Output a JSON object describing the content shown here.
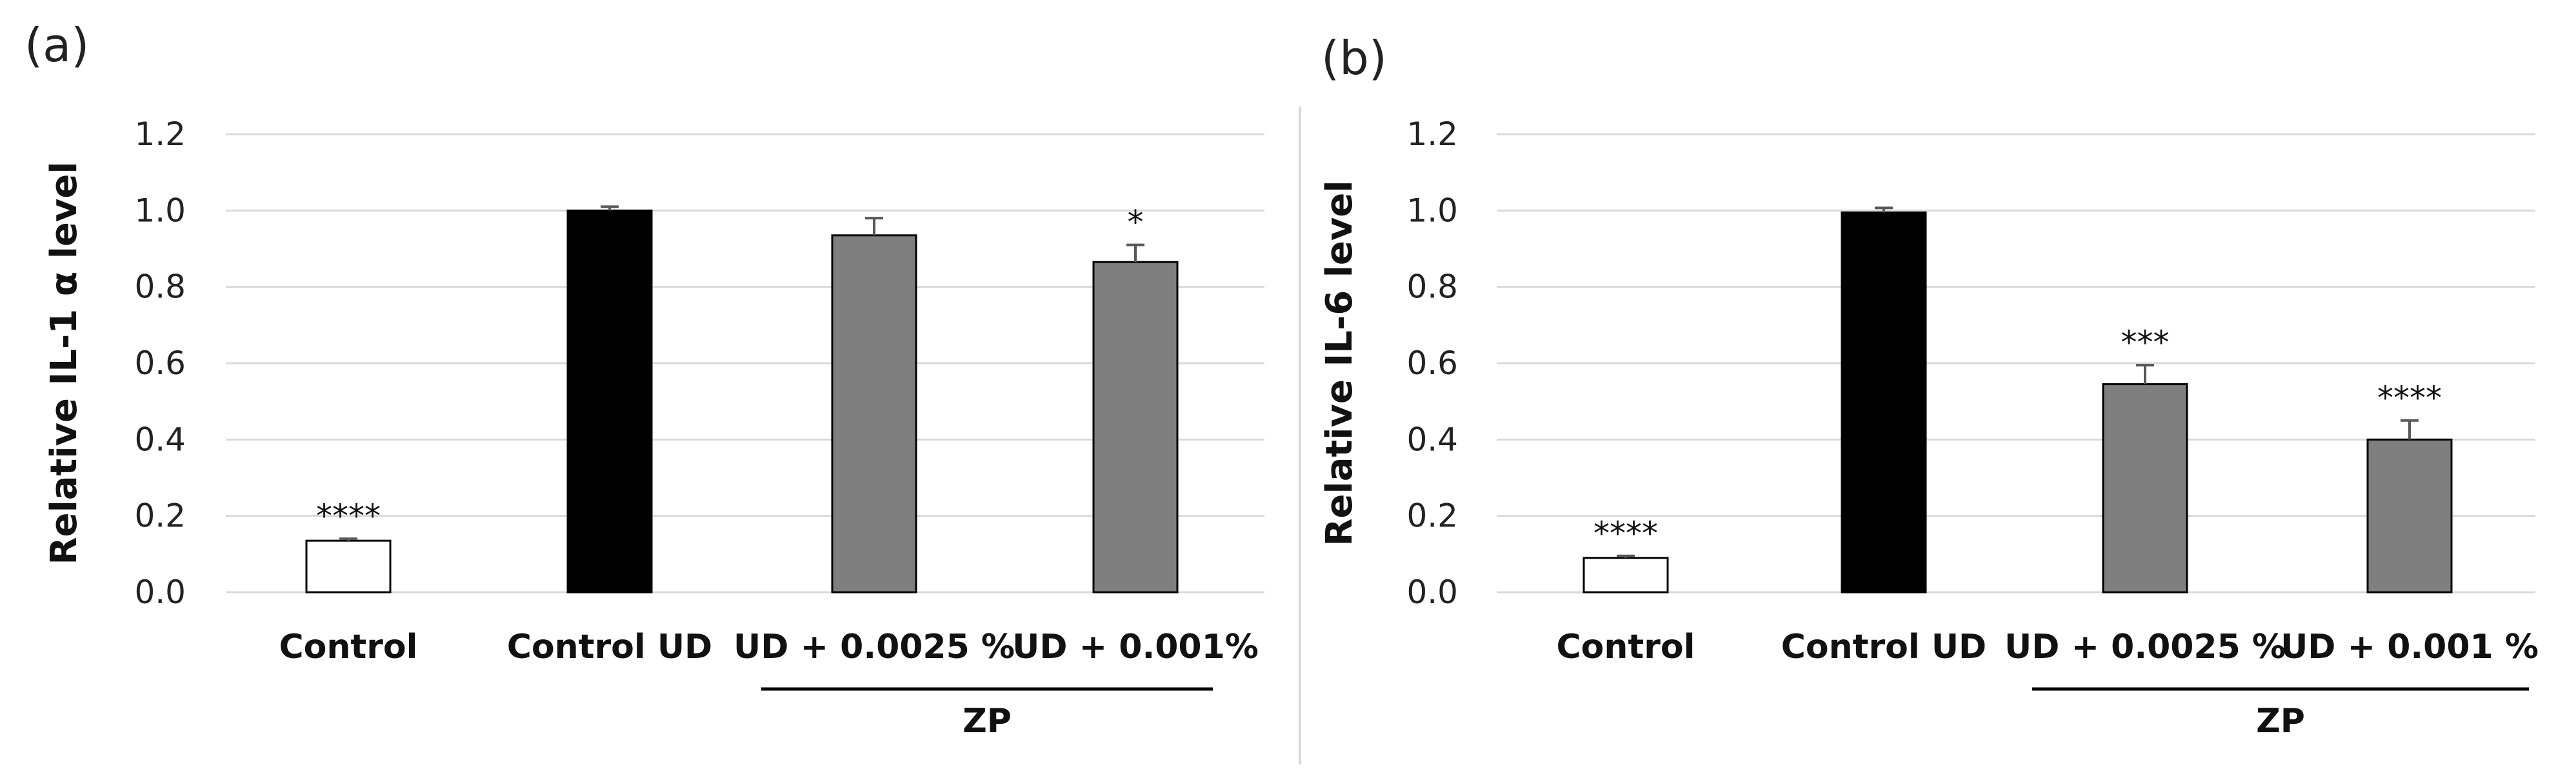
{
  "colors": {
    "control": "#ffffff",
    "control_ud": "#000000",
    "zp": "#7f7f7f",
    "bar_edge": "#000000"
  },
  "chart_data": [
    {
      "panel_label": "(a)",
      "type": "bar",
      "ylabel": "Relative IL-1 α level",
      "xlabel": "",
      "ylim": [
        0,
        1.2
      ],
      "yticks": [
        "0.0",
        "0.2",
        "0.4",
        "0.6",
        "0.8",
        "1.0",
        "1.2"
      ],
      "grid": true,
      "categories": [
        "Control",
        "Control UD",
        "UD + 0.0025 %",
        "UD + 0.001%"
      ],
      "values": [
        0.135,
        1.0,
        0.935,
        0.865
      ],
      "errors": [
        0.005,
        0.01,
        0.045,
        0.045
      ],
      "significance": [
        "****",
        "",
        "",
        "*"
      ],
      "fill_keys": [
        "control",
        "control_ud",
        "zp",
        "zp"
      ],
      "group_label": "ZP",
      "group_categories": [
        2,
        3
      ]
    },
    {
      "panel_label": "(b)",
      "type": "bar",
      "ylabel": "Relative IL-6 level",
      "xlabel": "",
      "ylim": [
        0,
        1.2
      ],
      "yticks": [
        "0.0",
        "0.2",
        "0.4",
        "0.6",
        "0.8",
        "1.0",
        "1.2"
      ],
      "grid": true,
      "categories": [
        "Control",
        "Control UD",
        "UD + 0.0025 %",
        "UD + 0.001 %"
      ],
      "values": [
        0.09,
        0.995,
        0.545,
        0.4
      ],
      "errors": [
        0.005,
        0.012,
        0.05,
        0.05
      ],
      "significance": [
        "****",
        "",
        "***",
        "****"
      ],
      "fill_keys": [
        "control",
        "control_ud",
        "zp",
        "zp"
      ],
      "group_label": "ZP",
      "group_categories": [
        2,
        3
      ]
    }
  ]
}
